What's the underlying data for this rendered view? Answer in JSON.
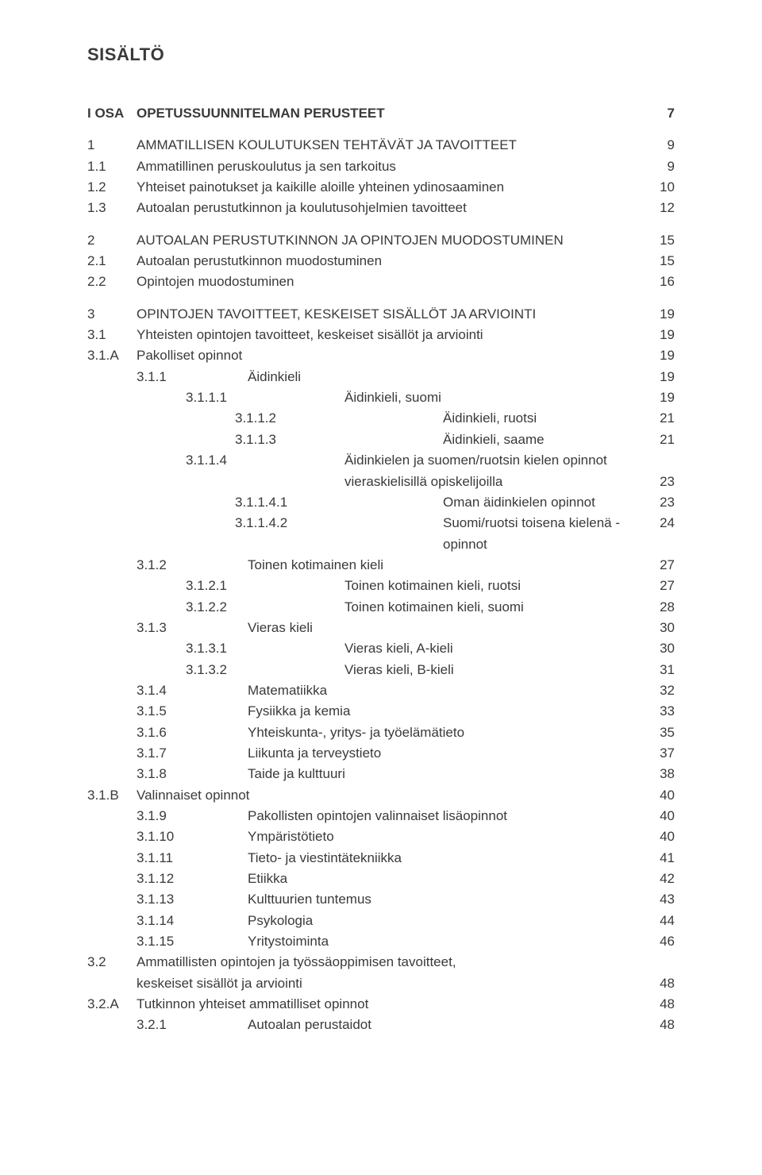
{
  "typography": {
    "font_family": "Arial, Helvetica, sans-serif",
    "body_fontsize_pt": 13,
    "title_fontsize_pt": 16,
    "text_color": "#3a3a3a",
    "background_color": "#ffffff",
    "line_height": 1.55
  },
  "title": "SISÄLTÖ",
  "entries": [
    {
      "id": "e01",
      "num": "I OSA",
      "label": "OPETUSSUUNNITELMAN PERUSTEET",
      "page": "7",
      "level": 0,
      "bold": true,
      "gap": "lg"
    },
    {
      "id": "e02",
      "num": "1",
      "label": "AMMATILLISEN KOULUTUKSEN TEHTÄVÄT JA TAVOITTEET",
      "page": "9",
      "level": 1,
      "bold": false,
      "gap": "md"
    },
    {
      "id": "e03",
      "num": "1.1",
      "label": "Ammatillinen peruskoulutus ja sen tarkoitus",
      "page": "9",
      "level": 1,
      "bold": false
    },
    {
      "id": "e04",
      "num": "1.2",
      "label": "Yhteiset painotukset ja kaikille aloille yhteinen ydinosaaminen",
      "page": "10",
      "level": 1,
      "bold": false
    },
    {
      "id": "e05",
      "num": "1.3",
      "label": "Autoalan perustutkinnon ja koulutusohjelmien tavoitteet",
      "page": "12",
      "level": 1,
      "bold": false
    },
    {
      "id": "e06",
      "num": "2",
      "label": "AUTOALAN PERUSTUTKINNON JA OPINTOJEN MUODOSTUMINEN",
      "page": "15",
      "level": 1,
      "bold": false,
      "gap": "md"
    },
    {
      "id": "e07",
      "num": "2.1",
      "label": "Autoalan perustutkinnon muodostuminen",
      "page": "15",
      "level": 1,
      "bold": false
    },
    {
      "id": "e08",
      "num": "2.2",
      "label": "Opintojen muodostuminen",
      "page": "16",
      "level": 1,
      "bold": false
    },
    {
      "id": "e09",
      "num": "3",
      "label": "OPINTOJEN TAVOITTEET, KESKEISET SISÄLLÖT JA ARVIOINTI",
      "page": "19",
      "level": 1,
      "bold": false,
      "gap": "md"
    },
    {
      "id": "e10",
      "num": "3.1",
      "label": "Yhteisten opintojen tavoitteet, keskeiset sisällöt ja arviointi",
      "page": "19",
      "level": 1,
      "bold": false
    },
    {
      "id": "e11",
      "num": "3.1.A",
      "label": "Pakolliset opinnot",
      "page": "19",
      "level": 1,
      "bold": false
    },
    {
      "id": "e12",
      "num": "3.1.1",
      "label": "Äidinkieli",
      "page": "19",
      "level": 2,
      "bold": false
    },
    {
      "id": "e13",
      "num": "3.1.1.1",
      "label": "Äidinkieli, suomi",
      "page": "19",
      "level": 3,
      "bold": false
    },
    {
      "id": "e14",
      "num": "3.1.1.2",
      "label": "Äidinkieli, ruotsi",
      "page": "21",
      "level": 4,
      "bold": false
    },
    {
      "id": "e15",
      "num": "3.1.1.3",
      "label": "Äidinkieli, saame",
      "page": "21",
      "level": 4,
      "bold": false
    },
    {
      "id": "e16",
      "num": "3.1.1.4",
      "label": "Äidinkielen ja suomen/ruotsin kielen opinnot",
      "page": "",
      "level": 3,
      "bold": false
    },
    {
      "id": "e17",
      "num": "",
      "label": "vieraskielisillä opiskelijoilla",
      "page": "23",
      "level": 3,
      "bold": false,
      "cont": true
    },
    {
      "id": "e18",
      "num": "3.1.1.4.1",
      "label": "Oman äidinkielen opinnot",
      "page": "23",
      "level": 4,
      "bold": false
    },
    {
      "id": "e19",
      "num": "3.1.1.4.2",
      "label": "Suomi/ruotsi toisena kielenä -opinnot",
      "page": "24",
      "level": 4,
      "bold": false
    },
    {
      "id": "e20",
      "num": "3.1.2",
      "label": "Toinen kotimainen kieli",
      "page": "27",
      "level": 2,
      "bold": false
    },
    {
      "id": "e21",
      "num": "3.1.2.1",
      "label": "Toinen kotimainen kieli, ruotsi",
      "page": "27",
      "level": 3,
      "bold": false
    },
    {
      "id": "e22",
      "num": "3.1.2.2",
      "label": "Toinen kotimainen kieli, suomi",
      "page": "28",
      "level": 3,
      "bold": false
    },
    {
      "id": "e23",
      "num": "3.1.3",
      "label": "Vieras kieli",
      "page": "30",
      "level": 2,
      "bold": false
    },
    {
      "id": "e24",
      "num": "3.1.3.1",
      "label": "Vieras kieli, A-kieli",
      "page": "30",
      "level": 3,
      "bold": false
    },
    {
      "id": "e25",
      "num": "3.1.3.2",
      "label": "Vieras kieli, B-kieli",
      "page": "31",
      "level": 3,
      "bold": false
    },
    {
      "id": "e26",
      "num": "3.1.4",
      "label": "Matematiikka",
      "page": "32",
      "level": 2,
      "bold": false
    },
    {
      "id": "e27",
      "num": "3.1.5",
      "label": "Fysiikka ja kemia",
      "page": "33",
      "level": 2,
      "bold": false
    },
    {
      "id": "e28",
      "num": "3.1.6",
      "label": "Yhteiskunta-, yritys- ja työelämätieto",
      "page": "35",
      "level": 2,
      "bold": false
    },
    {
      "id": "e29",
      "num": "3.1.7",
      "label": "Liikunta ja terveystieto",
      "page": "37",
      "level": 2,
      "bold": false
    },
    {
      "id": "e30",
      "num": "3.1.8",
      "label": "Taide ja kulttuuri",
      "page": "38",
      "level": 2,
      "bold": false
    },
    {
      "id": "e31",
      "num": "3.1.B",
      "label": "Valinnaiset opinnot",
      "page": "40",
      "level": 1,
      "bold": false
    },
    {
      "id": "e32",
      "num": "3.1.9",
      "label": "Pakollisten opintojen valinnaiset lisäopinnot",
      "page": "40",
      "level": 2,
      "bold": false
    },
    {
      "id": "e33",
      "num": "3.1.10",
      "label": "Ympäristötieto",
      "page": "40",
      "level": 2,
      "bold": false
    },
    {
      "id": "e34",
      "num": "3.1.11",
      "label": "Tieto- ja viestintätekniikka",
      "page": "41",
      "level": 2,
      "bold": false
    },
    {
      "id": "e35",
      "num": "3.1.12",
      "label": "Etiikka",
      "page": "42",
      "level": 2,
      "bold": false
    },
    {
      "id": "e36",
      "num": "3.1.13",
      "label": "Kulttuurien tuntemus",
      "page": "43",
      "level": 2,
      "bold": false
    },
    {
      "id": "e37",
      "num": "3.1.14",
      "label": "Psykologia",
      "page": "44",
      "level": 2,
      "bold": false
    },
    {
      "id": "e38",
      "num": "3.1.15",
      "label": "Yritystoiminta",
      "page": "46",
      "level": 2,
      "bold": false
    },
    {
      "id": "e39",
      "num": "3.2",
      "label": "Ammatillisten opintojen ja työssäoppimisen tavoitteet,",
      "page": "",
      "level": 1,
      "bold": false
    },
    {
      "id": "e40",
      "num": "",
      "label": "keskeiset sisällöt ja arviointi",
      "page": "48",
      "level": 1,
      "bold": false,
      "cont": true
    },
    {
      "id": "e41",
      "num": "3.2.A",
      "label": "Tutkinnon yhteiset ammatilliset opinnot",
      "page": "48",
      "level": 1,
      "bold": false
    },
    {
      "id": "e42",
      "num": "3.2.1",
      "label": "Autoalan perustaidot",
      "page": "48",
      "level": 2,
      "bold": false
    }
  ]
}
